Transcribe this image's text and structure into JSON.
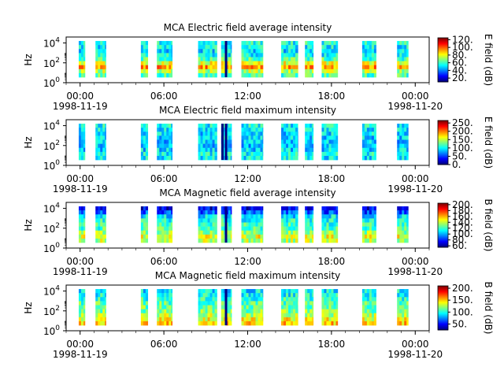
{
  "figure": {
    "background": "#ffffff",
    "colormap": "jet"
  },
  "chart_data": [
    {
      "type": "heatmap",
      "title": "MCA  Electric field average intensity",
      "ylabel": "Hz",
      "y_ticks": [
        {
          "exp": "0"
        },
        {
          "exp": "2"
        },
        {
          "exp": "4"
        }
      ],
      "y_scale": "log",
      "x_ticks": [
        "00:00",
        "06:00",
        "12:00",
        "18:00",
        "00:00"
      ],
      "x_ticks_hours": [
        0,
        6,
        12,
        18,
        24
      ],
      "x_dates": [
        "1998-11-19",
        "1998-11-20"
      ],
      "xlim_hours": [
        -1,
        25
      ],
      "colorbar": {
        "label": "E field (dB)",
        "min": 10,
        "max": 125,
        "ticks": [
          "120.",
          "100.",
          "80.",
          "60.",
          "40.",
          "20."
        ],
        "tick_values": [
          120,
          100,
          80,
          60,
          40,
          20
        ]
      },
      "profile": [
        0.45,
        0.55,
        0.72,
        0.6,
        0.45,
        0.38,
        0.35,
        0.37,
        0.4
      ],
      "data_blocks_hours": [
        [
          -0.1,
          0.35
        ],
        [
          1.1,
          1.85
        ],
        [
          4.35,
          4.85
        ],
        [
          5.5,
          6.6
        ],
        [
          8.45,
          9.8
        ],
        [
          10.1,
          10.85
        ],
        [
          11.55,
          13.1
        ],
        [
          14.4,
          15.6
        ],
        [
          16.1,
          16.7
        ],
        [
          17.3,
          18.45
        ],
        [
          20.2,
          21.2
        ],
        [
          22.7,
          23.5
        ]
      ],
      "stripes_hours": [
        10.45
      ]
    },
    {
      "type": "heatmap",
      "title": "MCA  Electric field maximum intensity",
      "ylabel": "Hz",
      "y_ticks": [
        {
          "exp": "0"
        },
        {
          "exp": "2"
        },
        {
          "exp": "4"
        }
      ],
      "y_scale": "log",
      "x_ticks": [
        "00:00",
        "06:00",
        "12:00",
        "18:00",
        "00:00"
      ],
      "x_ticks_hours": [
        0,
        6,
        12,
        18,
        24
      ],
      "x_dates": [
        "1998-11-19",
        "1998-11-20"
      ],
      "xlim_hours": [
        -1,
        25
      ],
      "colorbar": {
        "label": "E field (dB)",
        "min": 0,
        "max": 265,
        "ticks": [
          "250.",
          "200.",
          "150.",
          "100.",
          "50.",
          "0."
        ],
        "tick_values": [
          250,
          200,
          150,
          100,
          50,
          0
        ]
      },
      "profile": [
        0.36,
        0.38,
        0.34,
        0.31,
        0.32,
        0.33,
        0.34,
        0.36,
        0.38
      ],
      "data_blocks_hours": [
        [
          -0.1,
          0.35
        ],
        [
          1.1,
          1.85
        ],
        [
          4.35,
          4.85
        ],
        [
          5.5,
          6.6
        ],
        [
          8.45,
          9.8
        ],
        [
          10.1,
          10.85
        ],
        [
          11.55,
          13.1
        ],
        [
          14.4,
          15.6
        ],
        [
          16.1,
          16.7
        ],
        [
          17.3,
          18.45
        ],
        [
          20.2,
          21.2
        ],
        [
          22.7,
          23.5
        ]
      ],
      "stripes_hours": [
        10.2,
        10.45
      ]
    },
    {
      "type": "heatmap",
      "title": "MCA  Magnetic field average intensity",
      "ylabel": "Hz",
      "y_ticks": [
        {
          "exp": "0"
        },
        {
          "exp": "2"
        },
        {
          "exp": "4"
        }
      ],
      "y_scale": "log",
      "x_ticks": [
        "00:00",
        "06:00",
        "12:00",
        "18:00",
        "00:00"
      ],
      "x_ticks_hours": [
        0,
        6,
        12,
        18,
        24
      ],
      "x_dates": [
        "1998-11-19",
        "1998-11-20"
      ],
      "xlim_hours": [
        -1,
        25
      ],
      "colorbar": {
        "label": "B field (dB)",
        "min": 55,
        "max": 205,
        "ticks": [
          "200.",
          "180.",
          "160.",
          "140.",
          "120.",
          "100.",
          "80.",
          "60."
        ],
        "tick_values": [
          200,
          180,
          160,
          140,
          120,
          100,
          80,
          60
        ]
      },
      "profile": [
        0.55,
        0.6,
        0.52,
        0.45,
        0.42,
        0.4,
        0.35,
        0.2,
        0.1
      ],
      "data_blocks_hours": [
        [
          -0.1,
          0.35
        ],
        [
          1.1,
          1.85
        ],
        [
          4.35,
          4.85
        ],
        [
          5.5,
          6.6
        ],
        [
          8.45,
          9.8
        ],
        [
          10.1,
          10.85
        ],
        [
          11.55,
          13.1
        ],
        [
          14.4,
          15.6
        ],
        [
          16.1,
          16.7
        ],
        [
          17.3,
          18.45
        ],
        [
          20.2,
          21.2
        ],
        [
          22.7,
          23.5
        ]
      ],
      "stripes_hours": [
        10.45
      ]
    },
    {
      "type": "heatmap",
      "title": "MCA  Magnetic field maximum intensity",
      "ylabel": "Hz",
      "y_ticks": [
        {
          "exp": "0"
        },
        {
          "exp": "2"
        },
        {
          "exp": "4"
        }
      ],
      "y_scale": "log",
      "x_ticks": [
        "00:00",
        "06:00",
        "12:00",
        "18:00",
        "00:00"
      ],
      "x_ticks_hours": [
        0,
        6,
        12,
        18,
        24
      ],
      "x_dates": [
        "1998-11-19",
        "1998-11-20"
      ],
      "xlim_hours": [
        -1,
        25
      ],
      "colorbar": {
        "label": "B field (dB)",
        "min": 25,
        "max": 210,
        "ticks": [
          "200.",
          "150.",
          "100.",
          "50."
        ],
        "tick_values": [
          200,
          150,
          100,
          50
        ]
      },
      "profile": [
        0.68,
        0.62,
        0.55,
        0.5,
        0.48,
        0.46,
        0.42,
        0.38,
        0.36
      ],
      "data_blocks_hours": [
        [
          -0.1,
          0.35
        ],
        [
          1.1,
          1.85
        ],
        [
          4.35,
          4.85
        ],
        [
          5.5,
          6.6
        ],
        [
          8.45,
          9.8
        ],
        [
          10.1,
          10.85
        ],
        [
          11.55,
          13.1
        ],
        [
          14.4,
          15.6
        ],
        [
          16.1,
          16.7
        ],
        [
          17.3,
          18.45
        ],
        [
          20.2,
          21.2
        ],
        [
          22.7,
          23.5
        ]
      ],
      "stripes_hours": [
        10.45
      ]
    }
  ]
}
